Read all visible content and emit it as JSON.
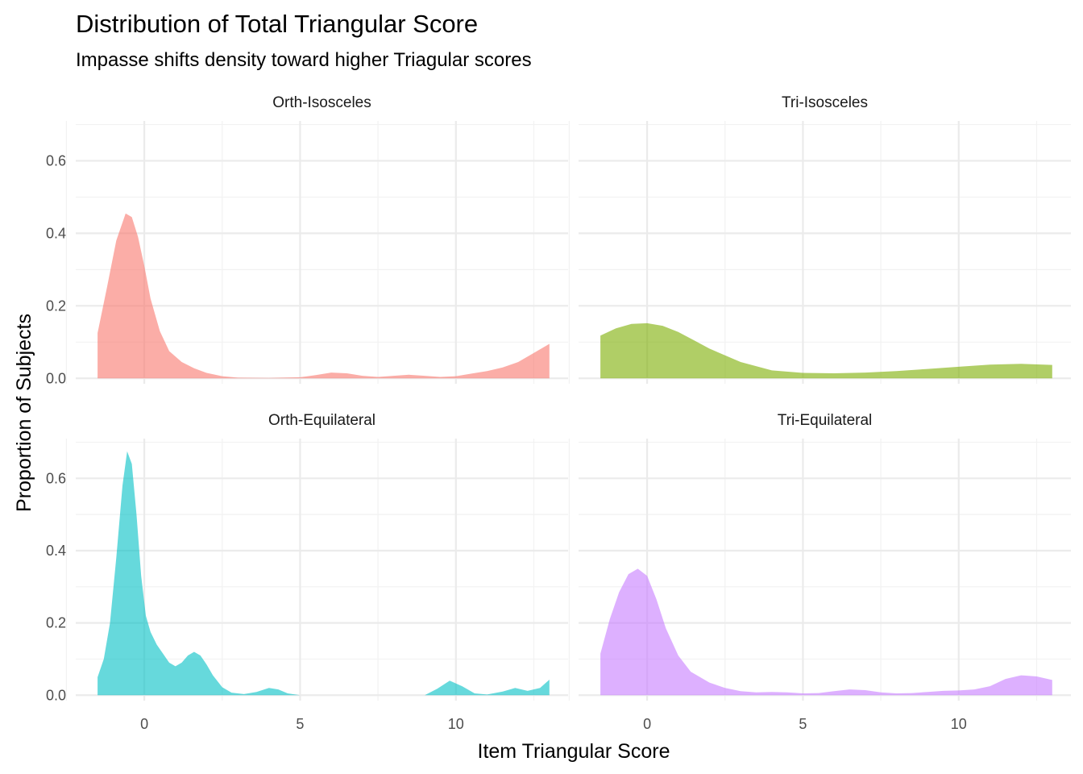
{
  "chart_data": {
    "type": "area",
    "title": "Distribution of Total Triangular Score",
    "subtitle": "Impasse shifts density toward higher Triagular scores",
    "xlabel": "Item Triangular Score",
    "ylabel": "Proportion of Subjects",
    "xlim": [
      -2.2,
      13.6
    ],
    "ylim": [
      -0.015,
      0.71
    ],
    "x_ticks": [
      0,
      5,
      10
    ],
    "x_tick_labels": [
      "0",
      "5",
      "10"
    ],
    "y_ticks": [
      0.0,
      0.2,
      0.4,
      0.6
    ],
    "y_tick_labels": [
      "0.0",
      "0.2",
      "0.4",
      "0.6"
    ],
    "grid": true,
    "legend": "none",
    "panels": [
      {
        "name": "Orth-Isosceles",
        "color": "#F8766D",
        "x": [
          -1.5,
          -1.2,
          -0.9,
          -0.6,
          -0.4,
          -0.2,
          0.0,
          0.2,
          0.5,
          0.8,
          1.2,
          1.6,
          2.0,
          2.5,
          3.0,
          4.0,
          5.0,
          5.5,
          6.0,
          6.5,
          7.0,
          7.5,
          8.0,
          8.5,
          9.0,
          9.5,
          10.0,
          10.5,
          11.0,
          11.5,
          12.0,
          12.5,
          13.0
        ],
        "y": [
          0.125,
          0.25,
          0.38,
          0.455,
          0.445,
          0.39,
          0.31,
          0.22,
          0.13,
          0.075,
          0.045,
          0.028,
          0.015,
          0.006,
          0.002,
          0.001,
          0.003,
          0.009,
          0.016,
          0.014,
          0.007,
          0.004,
          0.007,
          0.01,
          0.007,
          0.004,
          0.006,
          0.013,
          0.02,
          0.03,
          0.045,
          0.07,
          0.095
        ]
      },
      {
        "name": "Tri-Isosceles",
        "color": "#7CAE00",
        "x": [
          -1.5,
          -1.0,
          -0.5,
          0.0,
          0.5,
          1.0,
          1.5,
          2.0,
          3.0,
          4.0,
          5.0,
          6.0,
          7.0,
          8.0,
          9.0,
          10.0,
          11.0,
          12.0,
          13.0
        ],
        "y": [
          0.118,
          0.138,
          0.15,
          0.152,
          0.145,
          0.128,
          0.105,
          0.082,
          0.045,
          0.022,
          0.015,
          0.014,
          0.016,
          0.02,
          0.026,
          0.032,
          0.038,
          0.04,
          0.037
        ]
      },
      {
        "name": "Orth-Equilateral",
        "color": "#00BFC4",
        "x": [
          -1.5,
          -1.3,
          -1.1,
          -0.9,
          -0.7,
          -0.55,
          -0.4,
          -0.25,
          -0.1,
          0.05,
          0.2,
          0.4,
          0.6,
          0.8,
          1.0,
          1.2,
          1.4,
          1.6,
          1.8,
          2.0,
          2.2,
          2.5,
          2.8,
          3.2,
          3.6,
          4.0,
          4.3,
          4.6,
          5.0,
          6.0,
          7.0,
          8.0,
          9.0,
          9.4,
          9.8,
          10.2,
          10.6,
          11.0,
          11.5,
          11.9,
          12.3,
          12.7,
          13.0
        ],
        "y": [
          0.05,
          0.1,
          0.2,
          0.38,
          0.58,
          0.675,
          0.64,
          0.5,
          0.33,
          0.22,
          0.175,
          0.14,
          0.115,
          0.09,
          0.08,
          0.09,
          0.11,
          0.12,
          0.11,
          0.085,
          0.055,
          0.022,
          0.007,
          0.003,
          0.009,
          0.02,
          0.016,
          0.005,
          0.0,
          0.0,
          0.0,
          0.0,
          0.0,
          0.018,
          0.04,
          0.025,
          0.005,
          0.002,
          0.01,
          0.02,
          0.012,
          0.02,
          0.043
        ]
      },
      {
        "name": "Tri-Equilateral",
        "color": "#C77CFF",
        "x": [
          -1.5,
          -1.2,
          -0.9,
          -0.6,
          -0.3,
          0.0,
          0.3,
          0.6,
          1.0,
          1.4,
          2.0,
          2.5,
          3.0,
          3.5,
          4.0,
          4.5,
          5.0,
          5.5,
          6.0,
          6.5,
          7.0,
          7.5,
          8.0,
          8.5,
          9.0,
          9.5,
          10.0,
          10.5,
          11.0,
          11.5,
          12.0,
          12.5,
          13.0
        ],
        "y": [
          0.115,
          0.21,
          0.285,
          0.335,
          0.35,
          0.33,
          0.265,
          0.185,
          0.11,
          0.065,
          0.035,
          0.02,
          0.011,
          0.008,
          0.009,
          0.008,
          0.005,
          0.006,
          0.011,
          0.016,
          0.014,
          0.008,
          0.005,
          0.006,
          0.009,
          0.012,
          0.013,
          0.016,
          0.025,
          0.045,
          0.055,
          0.052,
          0.042
        ]
      }
    ]
  }
}
